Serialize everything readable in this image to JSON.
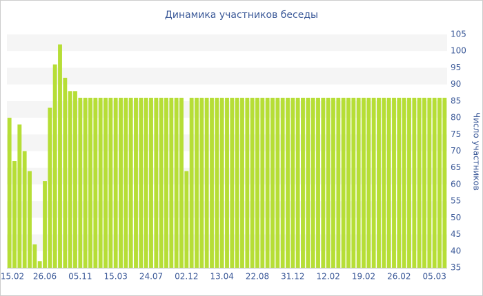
{
  "chart_data": {
    "type": "bar",
    "title": "Динамика участников беседы",
    "y_label": "Число участников",
    "categories": [
      "15.02",
      null,
      null,
      null,
      null,
      null,
      null,
      "26.06",
      null,
      null,
      null,
      null,
      null,
      null,
      "05.11",
      null,
      null,
      null,
      null,
      null,
      null,
      "15.03",
      null,
      null,
      null,
      null,
      null,
      null,
      "24.07",
      null,
      null,
      null,
      null,
      null,
      null,
      "02.12",
      null,
      null,
      null,
      null,
      null,
      null,
      "13.04",
      null,
      null,
      null,
      null,
      null,
      null,
      "22.08",
      null,
      null,
      null,
      null,
      null,
      null,
      "31.12",
      null,
      null,
      null,
      null,
      null,
      null,
      "12.02",
      null,
      null,
      null,
      null,
      null,
      null,
      "19.02",
      null,
      null,
      null,
      null,
      null,
      null,
      "26.02",
      null,
      null,
      null,
      null,
      null,
      null,
      "05.03",
      null,
      null
    ],
    "values": [
      80,
      67,
      78,
      70,
      64,
      42,
      37,
      61,
      83,
      96,
      102,
      92,
      88,
      88,
      86,
      86,
      86,
      86,
      86,
      86,
      86,
      86,
      86,
      86,
      86,
      86,
      86,
      86,
      86,
      86,
      86,
      86,
      86,
      86,
      86,
      64,
      86,
      86,
      86,
      86,
      86,
      86,
      86,
      86,
      86,
      86,
      86,
      86,
      86,
      86,
      86,
      86,
      86,
      86,
      86,
      86,
      86,
      86,
      86,
      86,
      86,
      86,
      86,
      86,
      86,
      86,
      86,
      86,
      86,
      86,
      86,
      86,
      86,
      86,
      86,
      86,
      86,
      86,
      86,
      86,
      86,
      86,
      86,
      86,
      86,
      86,
      86
    ],
    "color": "#b6de36",
    "ylim": [
      35,
      105
    ],
    "yticks": [
      35,
      40,
      45,
      50,
      55,
      60,
      65,
      70,
      75,
      80,
      85,
      90,
      95,
      100,
      105
    ],
    "grid": true
  }
}
